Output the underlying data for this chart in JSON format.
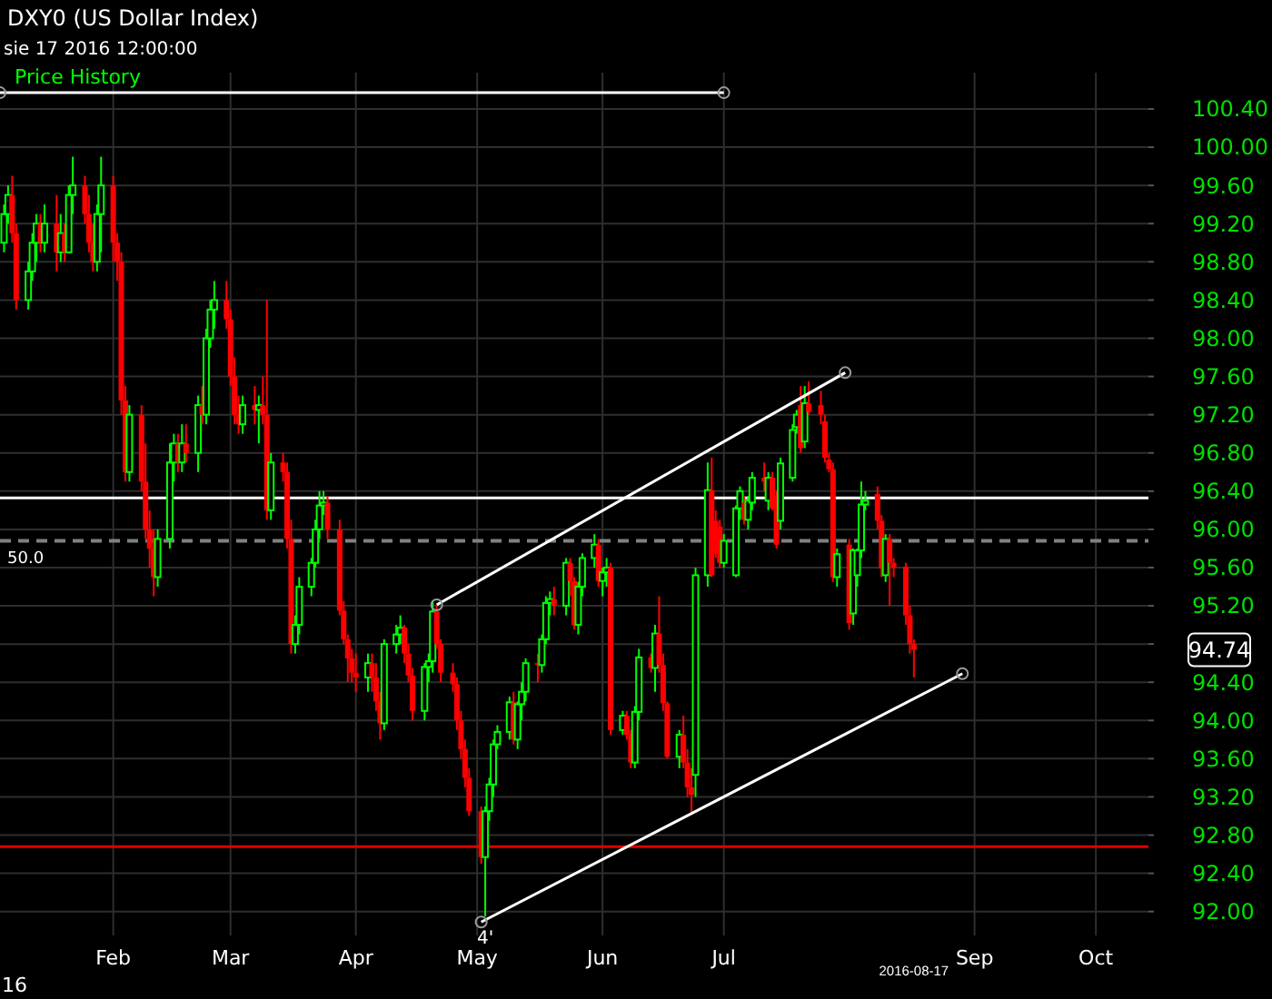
{
  "chart_data": {
    "type": "candlestick",
    "title": "DXY0 (US Dollar Index)",
    "subtitle": "sie 17 2016 12:00:00",
    "legend": "top left",
    "grid": true,
    "xlim": [
      "2016-01-04",
      "2016-10-14"
    ],
    "ylim": [
      91.75,
      100.78
    ],
    "xticks": [
      {
        "value": "2016-02-01",
        "label": "Feb"
      },
      {
        "value": "2016-03-01",
        "label": "Mar"
      },
      {
        "value": "2016-04-01",
        "label": "Apr"
      },
      {
        "value": "2016-05-01",
        "label": "May"
      },
      {
        "value": "2016-06-01",
        "label": "Jun"
      },
      {
        "value": "2016-07-01",
        "label": "Jul"
      },
      {
        "value": "2016-09-01",
        "label": "Sep"
      },
      {
        "value": "2016-10-01",
        "label": "Oct"
      }
    ],
    "yticks": [
      {
        "value": 92,
        "label": "92.00"
      },
      {
        "value": 92.4,
        "label": "92.40"
      },
      {
        "value": 92.8,
        "label": "92.80"
      },
      {
        "value": 93.2,
        "label": "93.20"
      },
      {
        "value": 93.6,
        "label": "93.60"
      },
      {
        "value": 94,
        "label": "94.00"
      },
      {
        "value": 94.4,
        "label": "94.40"
      },
      {
        "value": 94.8,
        "label": null
      },
      {
        "value": 95.2,
        "label": "95.20"
      },
      {
        "value": 95.6,
        "label": "95.60"
      },
      {
        "value": 96,
        "label": "96.00"
      },
      {
        "value": 96.4,
        "label": "96.40"
      },
      {
        "value": 96.8,
        "label": "96.80"
      },
      {
        "value": 97.2,
        "label": "97.20"
      },
      {
        "value": 97.6,
        "label": "97.60"
      },
      {
        "value": 98,
        "label": "98.00"
      },
      {
        "value": 98.4,
        "label": "98.40"
      },
      {
        "value": 98.8,
        "label": "98.80"
      },
      {
        "value": 99.2,
        "label": "99.20"
      },
      {
        "value": 99.6,
        "label": "99.60"
      },
      {
        "value": 100,
        "label": "100.00"
      },
      {
        "value": 100.4,
        "label": "100.40"
      }
    ],
    "ref_lines": [
      {
        "axis": "y",
        "value": 96.33,
        "color": "#ffffff",
        "line_style": "solid"
      },
      {
        "axis": "y",
        "value": 95.88,
        "color": "#808080",
        "line_style": "dashed"
      },
      {
        "axis": "y",
        "value": 92.68,
        "color": "#e00000",
        "line_style": "solid"
      }
    ],
    "annotations": [
      "94.74",
      {
        "text": "50.0",
        "x": "2016-01-04",
        "y": 95.88
      },
      {
        "text": "4'",
        "x": "2016-05-03",
        "y": 91.85
      },
      "2016-08-17",
      "16"
    ],
    "series": [
      {
        "name": "Price History",
        "colors": [
          "#00ff00",
          "#00ff00",
          "#ff0000",
          "#ff0000",
          "#00ff00",
          "#00ff00",
          "#00ff00",
          "#ff0000",
          "#00ff00",
          "#ff0000",
          "#00ff00",
          "#ff0000",
          "#00ff00",
          "#00ff00",
          "#ff0000",
          "#ff0000",
          "#ff0000",
          "#00ff00",
          "#00ff00",
          "#ff0000",
          "#ff0000",
          "#ff0000",
          "#ff0000",
          "#00ff00",
          "#ff0000",
          "#ff0000",
          "#ff0000",
          "#ff0000",
          "#00ff00",
          "#00ff00",
          "#00ff00",
          "#ff0000",
          "#00ff00",
          "#ff0000",
          "#00ff00",
          "#ff0000",
          "#00ff00",
          "#00ff00",
          "#00ff00",
          "#ff0000",
          "#ff0000",
          "#ff0000",
          "#ff0000",
          "#00ff00",
          "#ff0000",
          "#00ff00",
          "#ff0000",
          "#ff0000",
          "#00ff00",
          "#ff0000",
          "#ff0000",
          "#ff0000",
          "#00ff00",
          "#00ff00",
          "#00ff00",
          "#00ff00",
          "#00ff00",
          "#00ff00",
          "#ff0000",
          "#ff0000",
          "#ff0000",
          "#ff0000",
          "#ff0000",
          "#ff0000",
          "#00ff00",
          "#ff0000",
          "#ff0000",
          "#ff0000",
          "#00ff00",
          "#00ff00",
          "#00ff00",
          "#ff0000",
          "#ff0000",
          "#ff0000",
          "#00ff00",
          "#00ff00",
          "#00ff00",
          "#ff0000",
          "#ff0000",
          "#ff0000",
          "#ff0000",
          "#ff0000",
          "#ff0000",
          "#ff0000",
          "#ff0000",
          "#00ff00",
          "#00ff00",
          "#00ff00",
          "#00ff00",
          "#00ff00",
          "#ff0000",
          "#00ff00",
          "#00ff00",
          "#00ff00",
          "#ff0000",
          "#00ff00",
          "#00ff00",
          "#00ff00",
          "#ff0000",
          "#00ff00",
          "#ff0000",
          "#ff0000",
          "#00ff00",
          "#00ff00",
          "#00ff00",
          "#ff0000",
          "#00ff00",
          "#00ff00",
          "#ff0000",
          "#00ff00",
          "#ff0000",
          "#ff0000",
          "#00ff00",
          "#00ff00",
          "#ff0000",
          "#00ff00",
          "#ff0000",
          "#ff0000",
          "#ff0000",
          "#00ff00",
          "#ff0000",
          "#ff0000",
          "#ff0000",
          "#00ff00",
          "#00ff00",
          "#ff0000",
          "#ff0000",
          "#ff0000",
          "#00ff00",
          "#00ff00",
          "#00ff00",
          "#ff0000",
          "#00ff00",
          "#00ff00",
          "#ff0000",
          "#00ff00",
          "#ff0000",
          "#ff0000",
          "#00ff00",
          "#00ff00",
          "#00ff00",
          "#ff0000",
          "#00ff00",
          "#ff0000",
          "#ff0000",
          "#ff0000",
          "#ff0000",
          "#ff0000",
          "#00ff00",
          "#ff0000",
          "#00ff00",
          "#00ff00",
          "#00ff00",
          "#00ff00",
          "#ff0000",
          "#ff0000",
          "#00ff00",
          "#ff0000",
          "#ff0000",
          "#ff0000",
          "#ff0000",
          "#ff0000"
        ],
        "x": [
          "2016-01-05",
          "2016-01-06",
          "2016-01-07",
          "2016-01-08",
          "2016-01-11",
          "2016-01-12",
          "2016-01-13",
          "2016-01-14",
          "2016-01-15",
          "2016-01-18",
          "2016-01-19",
          "2016-01-20",
          "2016-01-21",
          "2016-01-22",
          "2016-01-25",
          "2016-01-26",
          "2016-01-27",
          "2016-01-28",
          "2016-01-29",
          "2016-02-01",
          "2016-02-02",
          "2016-02-03",
          "2016-02-04",
          "2016-02-05",
          "2016-02-08",
          "2016-02-09",
          "2016-02-10",
          "2016-02-11",
          "2016-02-12",
          "2016-02-15",
          "2016-02-16",
          "2016-02-17",
          "2016-02-18",
          "2016-02-19",
          "2016-02-22",
          "2016-02-23",
          "2016-02-24",
          "2016-02-25",
          "2016-02-26",
          "2016-02-29",
          "2016-03-01",
          "2016-03-02",
          "2016-03-03",
          "2016-03-04",
          "2016-03-07",
          "2016-03-08",
          "2016-03-09",
          "2016-03-10",
          "2016-03-11",
          "2016-03-14",
          "2016-03-15",
          "2016-03-16",
          "2016-03-17",
          "2016-03-18",
          "2016-03-21",
          "2016-03-22",
          "2016-03-23",
          "2016-03-24",
          "2016-03-25",
          "2016-03-28",
          "2016-03-29",
          "2016-03-30",
          "2016-03-31",
          "2016-04-01",
          "2016-04-04",
          "2016-04-05",
          "2016-04-06",
          "2016-04-07",
          "2016-04-08",
          "2016-04-11",
          "2016-04-12",
          "2016-04-13",
          "2016-04-14",
          "2016-04-15",
          "2016-04-18",
          "2016-04-19",
          "2016-04-20",
          "2016-04-21",
          "2016-04-22",
          "2016-04-25",
          "2016-04-26",
          "2016-04-27",
          "2016-04-28",
          "2016-04-29",
          "2016-05-02",
          "2016-05-03",
          "2016-05-04",
          "2016-05-05",
          "2016-05-06",
          "2016-05-09",
          "2016-05-10",
          "2016-05-11",
          "2016-05-12",
          "2016-05-13",
          "2016-05-16",
          "2016-05-17",
          "2016-05-18",
          "2016-05-19",
          "2016-05-20",
          "2016-05-23",
          "2016-05-24",
          "2016-05-25",
          "2016-05-26",
          "2016-05-27",
          "2016-05-30",
          "2016-05-31",
          "2016-06-01",
          "2016-06-02",
          "2016-06-03",
          "2016-06-06",
          "2016-06-07",
          "2016-06-08",
          "2016-06-09",
          "2016-06-10",
          "2016-06-13",
          "2016-06-14",
          "2016-06-15",
          "2016-06-16",
          "2016-06-17",
          "2016-06-20",
          "2016-06-21",
          "2016-06-22",
          "2016-06-23",
          "2016-06-24",
          "2016-06-27",
          "2016-06-28",
          "2016-06-29",
          "2016-06-30",
          "2016-07-01",
          "2016-07-04",
          "2016-07-05",
          "2016-07-06",
          "2016-07-07",
          "2016-07-08",
          "2016-07-11",
          "2016-07-12",
          "2016-07-13",
          "2016-07-14",
          "2016-07-15",
          "2016-07-18",
          "2016-07-19",
          "2016-07-20",
          "2016-07-21",
          "2016-07-22",
          "2016-07-25",
          "2016-07-26",
          "2016-07-27",
          "2016-07-28",
          "2016-07-29",
          "2016-08-01",
          "2016-08-02",
          "2016-08-03",
          "2016-08-04",
          "2016-08-05",
          "2016-08-08",
          "2016-08-09",
          "2016-08-10",
          "2016-08-11",
          "2016-08-12",
          "2016-08-15",
          "2016-08-16",
          "2016-08-17"
        ],
        "ohlc": [
          [
            99.0,
            99.4,
            98.9,
            99.3
          ],
          [
            99.3,
            99.6,
            99.2,
            99.5
          ],
          [
            99.5,
            99.7,
            99.0,
            99.1
          ],
          [
            99.1,
            99.2,
            98.3,
            98.4
          ],
          [
            98.4,
            98.8,
            98.3,
            98.7
          ],
          [
            98.7,
            99.1,
            98.6,
            99.0
          ],
          [
            99.0,
            99.3,
            98.8,
            99.2
          ],
          [
            99.2,
            99.3,
            98.9,
            99.0
          ],
          [
            99.0,
            99.4,
            98.9,
            99.2
          ],
          [
            99.2,
            99.5,
            98.7,
            98.9
          ],
          [
            98.9,
            99.3,
            98.8,
            99.1
          ],
          [
            99.1,
            99.2,
            98.8,
            98.9
          ],
          [
            98.9,
            99.6,
            98.9,
            99.5
          ],
          [
            99.5,
            99.9,
            99.3,
            99.6
          ],
          [
            99.6,
            99.7,
            99.2,
            99.3
          ],
          [
            99.3,
            99.5,
            98.9,
            99.0
          ],
          [
            99.0,
            99.2,
            98.7,
            98.8
          ],
          [
            98.8,
            99.4,
            98.7,
            99.3
          ],
          [
            99.3,
            99.9,
            98.9,
            99.6
          ],
          [
            99.6,
            99.7,
            98.8,
            99.0
          ],
          [
            99.0,
            99.1,
            98.6,
            98.8
          ],
          [
            98.8,
            98.9,
            97.2,
            97.35
          ],
          [
            97.35,
            97.5,
            96.5,
            96.6
          ],
          [
            96.6,
            97.3,
            96.5,
            97.2
          ],
          [
            97.2,
            97.3,
            96.4,
            96.5
          ],
          [
            96.5,
            96.9,
            95.9,
            96.0
          ],
          [
            96.0,
            96.2,
            95.6,
            95.8
          ],
          [
            95.8,
            96.0,
            95.3,
            95.5
          ],
          [
            95.5,
            96.0,
            95.4,
            95.9
          ],
          [
            95.9,
            96.9,
            95.8,
            96.7
          ],
          [
            96.7,
            97.0,
            96.5,
            96.9
          ],
          [
            96.9,
            97.0,
            96.6,
            96.7
          ],
          [
            96.7,
            97.1,
            96.6,
            96.9
          ],
          [
            96.9,
            97.1,
            96.7,
            96.8
          ],
          [
            96.8,
            97.4,
            96.6,
            97.3
          ],
          [
            97.3,
            97.5,
            97.1,
            97.2
          ],
          [
            97.2,
            98.1,
            97.1,
            98.0
          ],
          [
            98.0,
            98.4,
            97.9,
            98.3
          ],
          [
            98.3,
            98.6,
            98.1,
            98.4
          ],
          [
            98.4,
            98.6,
            98.1,
            98.2
          ],
          [
            98.2,
            98.3,
            97.5,
            97.6
          ],
          [
            97.6,
            97.8,
            97.1,
            97.2
          ],
          [
            97.2,
            97.4,
            97.0,
            97.1
          ],
          [
            97.1,
            97.4,
            97.0,
            97.3
          ],
          [
            97.3,
            97.5,
            97.1,
            97.25
          ],
          [
            97.25,
            97.4,
            96.9,
            97.3
          ],
          [
            97.3,
            97.6,
            97.1,
            97.2
          ],
          [
            97.2,
            98.4,
            96.1,
            96.2
          ],
          [
            96.2,
            96.8,
            96.1,
            96.7
          ],
          [
            96.7,
            96.8,
            96.5,
            96.6
          ],
          [
            96.6,
            96.7,
            95.8,
            95.9
          ],
          [
            95.9,
            96.1,
            94.7,
            94.8
          ],
          [
            94.8,
            95.1,
            94.7,
            95.0
          ],
          [
            95.0,
            95.5,
            94.9,
            95.4
          ],
          [
            95.4,
            95.7,
            95.3,
            95.65
          ],
          [
            95.65,
            96.1,
            95.6,
            96.0
          ],
          [
            96.0,
            96.4,
            95.9,
            96.25
          ],
          [
            96.25,
            96.4,
            96.15,
            96.28
          ],
          [
            96.28,
            96.35,
            95.9,
            96.0
          ],
          [
            96.0,
            96.1,
            95.1,
            95.15
          ],
          [
            95.15,
            95.25,
            94.8,
            94.85
          ],
          [
            94.85,
            94.9,
            94.4,
            94.65
          ],
          [
            94.65,
            94.75,
            94.4,
            94.5
          ],
          [
            94.5,
            94.7,
            94.3,
            94.45
          ],
          [
            94.45,
            94.7,
            94.3,
            94.6
          ],
          [
            94.6,
            94.7,
            94.3,
            94.45
          ],
          [
            94.45,
            94.6,
            94.1,
            94.2
          ],
          [
            94.2,
            94.3,
            93.8,
            93.97
          ],
          [
            93.97,
            94.85,
            93.9,
            94.8
          ],
          [
            94.8,
            95.0,
            94.7,
            94.9
          ],
          [
            94.9,
            95.1,
            94.8,
            94.97
          ],
          [
            94.97,
            95.0,
            94.6,
            94.7
          ],
          [
            94.7,
            94.8,
            94.4,
            94.47
          ],
          [
            94.47,
            94.55,
            94.0,
            94.1
          ],
          [
            94.1,
            94.6,
            94.0,
            94.56
          ],
          [
            94.56,
            94.7,
            94.4,
            94.62
          ],
          [
            94.62,
            95.25,
            94.5,
            95.14
          ],
          [
            95.14,
            95.2,
            94.75,
            94.8
          ],
          [
            94.8,
            94.85,
            94.4,
            94.5
          ],
          [
            94.5,
            94.6,
            94.3,
            94.38
          ],
          [
            94.38,
            94.45,
            93.9,
            94.0
          ],
          [
            94.0,
            94.1,
            93.6,
            93.7
          ],
          [
            93.7,
            93.8,
            93.3,
            93.4
          ],
          [
            93.4,
            93.5,
            93.0,
            93.05
          ],
          [
            93.05,
            93.1,
            92.5,
            92.57
          ],
          [
            92.57,
            93.1,
            91.95,
            93.05
          ],
          [
            93.05,
            93.4,
            92.95,
            93.33
          ],
          [
            93.33,
            93.8,
            93.2,
            93.75
          ],
          [
            93.75,
            93.95,
            93.7,
            93.88
          ],
          [
            93.88,
            94.25,
            93.8,
            94.19
          ],
          [
            94.19,
            94.3,
            93.75,
            93.8
          ],
          [
            93.8,
            94.2,
            93.7,
            94.17
          ],
          [
            94.17,
            94.4,
            94.0,
            94.3
          ],
          [
            94.3,
            94.65,
            94.2,
            94.6
          ],
          [
            94.6,
            94.7,
            94.4,
            94.58
          ],
          [
            94.58,
            94.9,
            94.5,
            94.85
          ],
          [
            94.85,
            95.3,
            94.8,
            95.23
          ],
          [
            95.23,
            95.35,
            95.1,
            95.27
          ],
          [
            95.27,
            95.4,
            95.1,
            95.2
          ],
          [
            95.2,
            95.7,
            95.1,
            95.65
          ],
          [
            95.65,
            95.7,
            95.3,
            95.46
          ],
          [
            95.46,
            95.5,
            94.95,
            95.0
          ],
          [
            95.0,
            95.45,
            94.9,
            95.4
          ],
          [
            95.4,
            95.75,
            95.3,
            95.7
          ],
          [
            95.7,
            95.95,
            95.6,
            95.84
          ],
          [
            95.84,
            95.9,
            95.4,
            95.46
          ],
          [
            95.46,
            95.6,
            95.3,
            95.55
          ],
          [
            95.55,
            95.7,
            95.4,
            95.6
          ],
          [
            95.6,
            95.65,
            93.85,
            93.9
          ],
          [
            93.9,
            94.1,
            93.85,
            94.05
          ],
          [
            94.05,
            94.1,
            93.8,
            93.85
          ],
          [
            93.85,
            93.9,
            93.5,
            93.56
          ],
          [
            93.56,
            94.15,
            93.5,
            94.09
          ],
          [
            94.09,
            94.75,
            94.0,
            94.66
          ],
          [
            94.66,
            94.7,
            94.5,
            94.55
          ],
          [
            94.55,
            95.0,
            94.3,
            94.91
          ],
          [
            94.91,
            95.3,
            94.5,
            94.58
          ],
          [
            94.58,
            94.7,
            94.1,
            94.18
          ],
          [
            94.18,
            94.2,
            93.6,
            93.62
          ],
          [
            93.62,
            93.9,
            93.5,
            93.85
          ],
          [
            93.85,
            94.05,
            93.5,
            93.56
          ],
          [
            93.56,
            93.7,
            93.2,
            93.3
          ],
          [
            93.3,
            93.5,
            93.03,
            93.22
          ],
          [
            93.43,
            95.6,
            93.2,
            95.52
          ],
          [
            95.52,
            96.7,
            95.4,
            96.41
          ],
          [
            96.41,
            96.75,
            95.5,
            95.52
          ],
          [
            96.09,
            96.2,
            95.7,
            95.74
          ],
          [
            96.03,
            96.1,
            95.6,
            95.65
          ],
          [
            95.65,
            95.95,
            95.6,
            95.88
          ],
          [
            95.52,
            96.25,
            95.5,
            96.22
          ],
          [
            96.22,
            96.45,
            96.1,
            96.4
          ],
          [
            96.28,
            96.35,
            96.05,
            96.1
          ],
          [
            96.1,
            96.35,
            96.0,
            96.3
          ],
          [
            96.28,
            96.6,
            96.2,
            96.54
          ],
          [
            96.54,
            96.7,
            96.4,
            96.5
          ],
          [
            96.3,
            96.6,
            96.2,
            96.54
          ],
          [
            96.54,
            96.6,
            96.2,
            96.22
          ],
          [
            96.35,
            96.4,
            95.8,
            95.84
          ],
          [
            96.09,
            96.75,
            96.0,
            96.69
          ],
          [
            96.54,
            97.1,
            96.5,
            97.04
          ],
          [
            97.07,
            97.25,
            97.0,
            97.2
          ],
          [
            97.3,
            97.5,
            96.8,
            96.85
          ],
          [
            96.92,
            97.5,
            96.85,
            97.32
          ],
          [
            97.32,
            97.55,
            97.2,
            97.23
          ],
          [
            97.3,
            97.45,
            97.1,
            97.2
          ],
          [
            97.13,
            97.2,
            96.7,
            96.75
          ],
          [
            96.73,
            96.8,
            96.6,
            96.63
          ],
          [
            96.63,
            96.7,
            95.45,
            95.5
          ],
          [
            95.5,
            95.8,
            95.4,
            95.74
          ],
          [
            95.84,
            95.9,
            94.95,
            95.02
          ],
          [
            95.12,
            95.8,
            95.0,
            95.78
          ],
          [
            95.52,
            95.8,
            95.4,
            95.78
          ],
          [
            95.78,
            96.5,
            95.7,
            96.26
          ],
          [
            96.26,
            96.4,
            96.2,
            96.3
          ],
          [
            96.37,
            96.45,
            96.0,
            96.09
          ],
          [
            96.09,
            96.15,
            95.5,
            95.59
          ],
          [
            95.52,
            95.95,
            95.45,
            95.9
          ],
          [
            95.9,
            95.95,
            95.2,
            95.65
          ],
          [
            95.65,
            95.7,
            95.5,
            95.6
          ],
          [
            95.61,
            95.65,
            95.0,
            95.1
          ],
          [
            95.1,
            95.2,
            94.7,
            94.8
          ],
          [
            94.8,
            94.85,
            94.45,
            94.74
          ]
        ]
      },
      {
        "type": "line",
        "color": "#ffffff",
        "marker": "circle",
        "x": [
          "2016-01-04",
          "2016-07-01"
        ],
        "values": [
          100.57,
          100.57
        ]
      },
      {
        "type": "line",
        "color": "#ffffff",
        "marker": "circle",
        "x": [
          "2016-04-21",
          "2016-07-31"
        ],
        "values": [
          95.21,
          97.64
        ]
      },
      {
        "type": "line",
        "color": "#ffffff",
        "marker": "circle",
        "x": [
          "2016-05-02",
          "2016-08-29"
        ],
        "values": [
          91.89,
          94.49
        ]
      }
    ]
  }
}
